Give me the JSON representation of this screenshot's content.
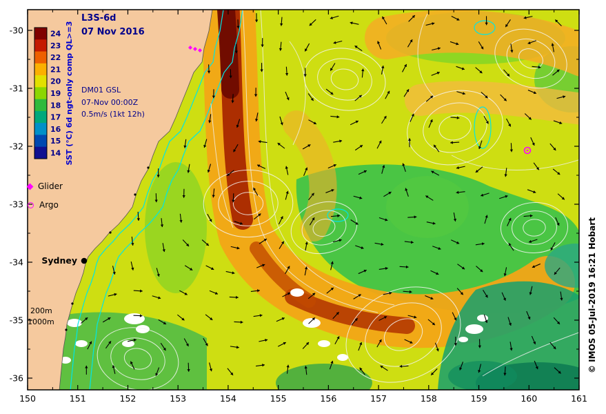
{
  "figure": {
    "title_line1": "L3S-6d",
    "title_line2": "07 Nov 2016",
    "info_lines": [
      "DM01 GSL",
      "07-Nov 00:00Z",
      "0.5m/s (1kt 12h)"
    ],
    "city_label": "Sydney",
    "depth_label_200": "200m",
    "depth_label_1000": "1000m",
    "copyright": "© IMOS 05-Jul-2019 16:21 Hobart"
  },
  "colorbar": {
    "label": "SST (°C) 6d ngt-only comp QL>=3",
    "ticks": [
      24,
      23,
      22,
      21,
      20,
      19,
      18,
      17,
      16,
      15,
      14
    ],
    "colors": [
      "#7f0000",
      "#c41a00",
      "#ee6000",
      "#fbb000",
      "#e2e000",
      "#8cd600",
      "#2fba3c",
      "#00a87c",
      "#0090c8",
      "#0048b0",
      "#101090"
    ]
  },
  "legend": {
    "items": [
      {
        "label": "Glider",
        "marker": "diamond",
        "color": "#ff00ff"
      },
      {
        "label": "Argo",
        "marker": "circle",
        "color": "#ff00ff"
      }
    ]
  },
  "axes": {
    "x_ticks": [
      150,
      151,
      152,
      153,
      154,
      155,
      156,
      157,
      158,
      159,
      160,
      161
    ],
    "y_ticks": [
      -30,
      -31,
      -32,
      -33,
      -34,
      -35,
      -36
    ]
  }
}
